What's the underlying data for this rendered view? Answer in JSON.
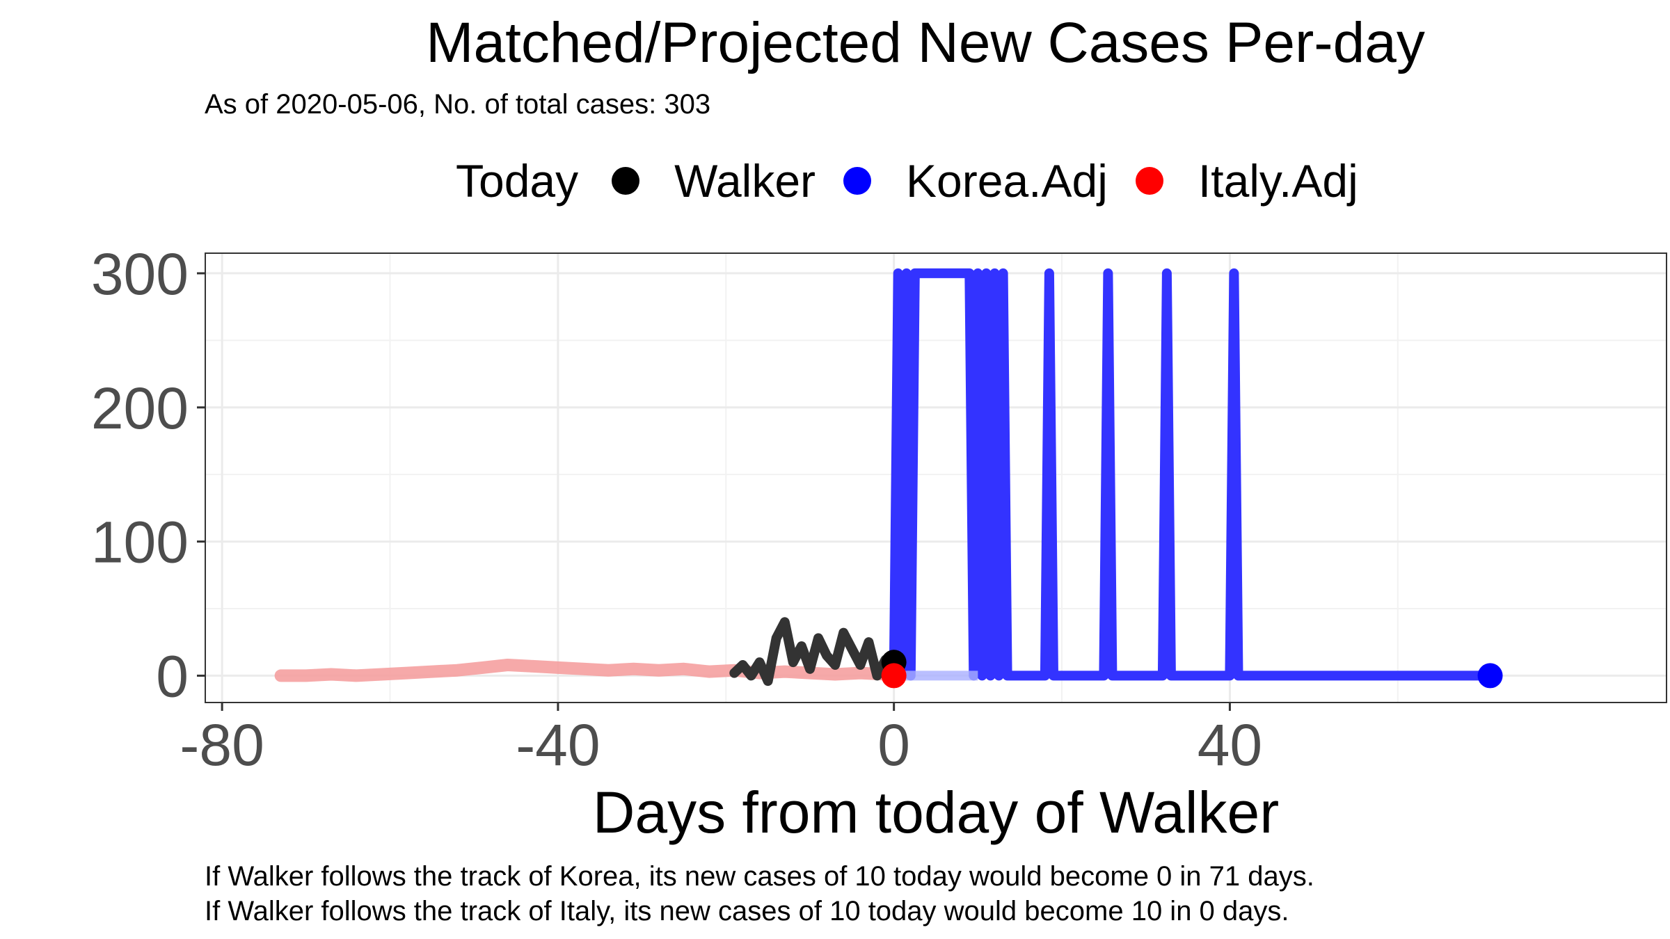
{
  "chart_data": {
    "type": "line",
    "title": "Matched/Projected New Cases Per-day",
    "subtitle": "As of 2020-05-06, No. of total cases: 303",
    "xlabel": "Days from today of Walker",
    "ylabel": "",
    "xlim": [
      -82,
      92
    ],
    "ylim": [
      -20,
      315
    ],
    "x_ticks": [
      -80,
      -40,
      0,
      40
    ],
    "y_ticks": [
      0,
      100,
      200,
      300
    ],
    "grid": true,
    "legend": {
      "title": "Today",
      "position": "top",
      "entries": [
        {
          "label": "Walker",
          "color": "#000000"
        },
        {
          "label": "Korea.Adj",
          "color": "#0000ff"
        },
        {
          "label": "Italy.Adj",
          "color": "#ff0000"
        }
      ]
    },
    "series": [
      {
        "name": "Walker",
        "color": "#333333",
        "x": [
          -19,
          -18,
          -17,
          -16,
          -15,
          -14,
          -13,
          -12,
          -11,
          -10,
          -9,
          -8,
          -7,
          -6,
          -5,
          -4,
          -3,
          -2,
          -1,
          0
        ],
        "y": [
          2,
          8,
          0,
          10,
          -4,
          28,
          40,
          10,
          22,
          5,
          28,
          15,
          8,
          32,
          20,
          8,
          25,
          0,
          12,
          10
        ]
      },
      {
        "name": "Korea.Adj",
        "color": "#3333ff",
        "x": [
          0,
          0.5,
          1,
          1.5,
          2,
          2.5,
          3,
          4,
          5,
          6,
          7,
          8,
          9,
          9.5,
          10,
          10.5,
          11,
          11.5,
          12,
          12.5,
          13,
          13.5,
          14,
          15,
          16,
          17,
          18,
          18.5,
          19,
          19.5,
          20,
          21,
          22,
          23,
          24,
          25,
          25.5,
          26,
          26.5,
          27,
          28,
          29,
          30,
          31,
          32,
          32.5,
          33,
          33.5,
          34,
          35,
          36,
          37,
          38,
          39,
          40,
          40.5,
          41,
          41.5,
          42,
          43,
          45,
          50,
          55,
          60,
          65,
          71
        ],
        "y": [
          0,
          300,
          0,
          300,
          0,
          300,
          300,
          300,
          300,
          300,
          300,
          300,
          300,
          0,
          300,
          0,
          300,
          0,
          300,
          0,
          300,
          0,
          0,
          0,
          0,
          0,
          0,
          300,
          0,
          0,
          0,
          0,
          0,
          0,
          0,
          0,
          300,
          0,
          0,
          0,
          0,
          0,
          0,
          0,
          0,
          300,
          0,
          0,
          0,
          0,
          0,
          0,
          0,
          0,
          0,
          300,
          0,
          0,
          0,
          0,
          0,
          0,
          0,
          0,
          0,
          0
        ]
      },
      {
        "name": "Italy.Adj",
        "color": "#f5a0a0",
        "x": [
          -73,
          -70,
          -67,
          -64,
          -61,
          -58,
          -55,
          -52,
          -49,
          -46,
          -43,
          -40,
          -37,
          -34,
          -31,
          -28,
          -25,
          -22,
          -19,
          -16,
          -13,
          -10,
          -7,
          -4,
          -1,
          0
        ],
        "y": [
          0,
          0,
          1,
          0,
          1,
          2,
          3,
          4,
          6,
          8,
          7,
          6,
          5,
          4,
          5,
          4,
          5,
          3,
          4,
          2,
          3,
          2,
          1,
          2,
          1,
          0
        ]
      }
    ],
    "markers": [
      {
        "series": "Walker",
        "x": 0,
        "y": 10,
        "color": "#000000"
      },
      {
        "series": "Italy.Adj",
        "x": 0,
        "y": 0,
        "color": "#ff0000"
      },
      {
        "series": "Korea.Adj",
        "x": 71,
        "y": 0,
        "color": "#0000ff"
      }
    ],
    "annotations": [
      "If Walker follows the track of Korea, its new cases of 10 today would become 0 in 71 days.",
      "If Walker follows the track of Italy, its new cases of 10 today would become 10 in 0 days."
    ]
  }
}
